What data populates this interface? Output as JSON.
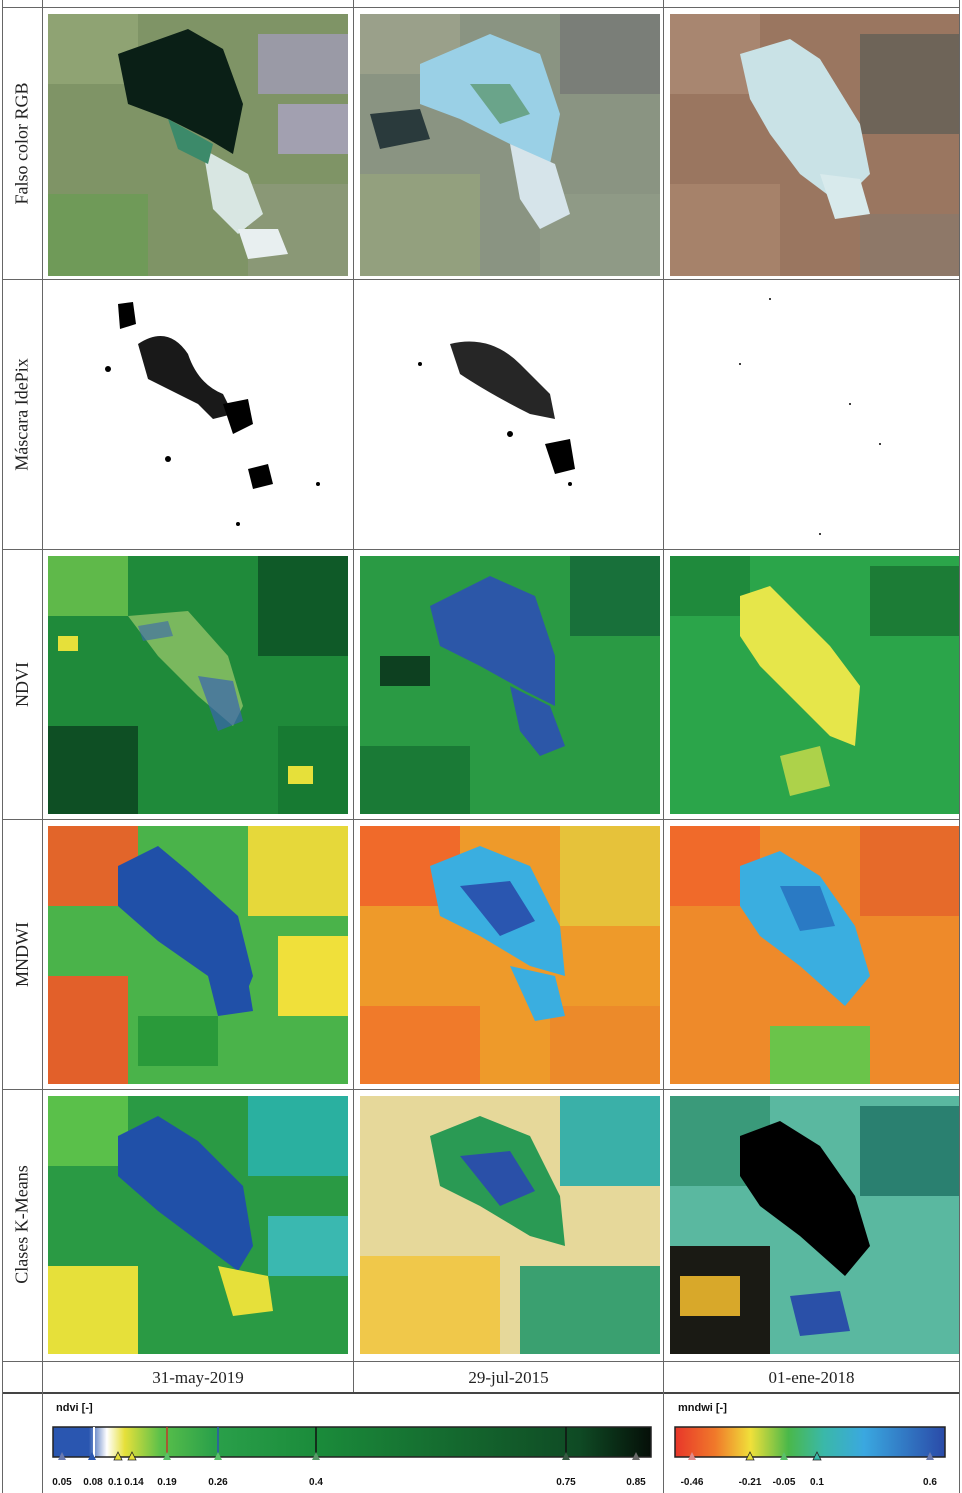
{
  "rows": {
    "falso_color": "Falso color RGB",
    "mascara": "Máscara IdePix",
    "ndvi": "NDVI",
    "mndwi": "MNDWI",
    "kmeans": "Clases K-Means"
  },
  "dates": [
    "31-may-2019",
    "29-jul-2015",
    "01-ene-2018"
  ],
  "legend": {
    "ndvi": {
      "title": "ndvi [-]",
      "ticks": [
        "0.05",
        "0.08",
        "0.1",
        "0.14",
        "0.19",
        "0.26",
        "0.4",
        "0.75",
        "0.85"
      ]
    },
    "mndwi": {
      "title": "mndwi [-]",
      "ticks": [
        "-0.46",
        "-0.21",
        "-0.05",
        "0.1",
        "0.6"
      ]
    }
  }
}
